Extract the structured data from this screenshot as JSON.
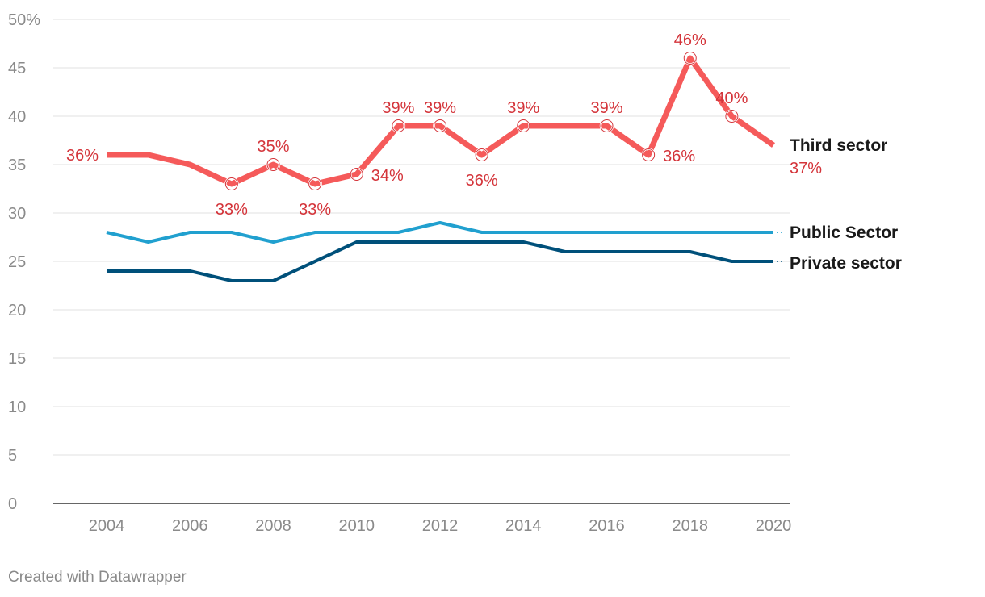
{
  "chart_data": {
    "type": "line",
    "x": [
      2004,
      2005,
      2006,
      2007,
      2008,
      2009,
      2010,
      2011,
      2012,
      2013,
      2014,
      2015,
      2016,
      2017,
      2018,
      2019,
      2020
    ],
    "x_tick_labels": [
      "2004",
      "2006",
      "2008",
      "2010",
      "2012",
      "2014",
      "2016",
      "2018",
      "2020"
    ],
    "y_tick_labels": [
      "50%",
      "45",
      "40",
      "35",
      "30",
      "25",
      "20",
      "15",
      "10",
      "5",
      "0"
    ],
    "ylim": [
      0,
      50
    ],
    "grid": true,
    "series": [
      {
        "name": "Third sector",
        "color": "#f55a5a",
        "values": [
          36,
          36,
          35,
          33,
          35,
          33,
          34,
          39,
          39,
          36,
          39,
          39,
          39,
          36,
          46,
          40,
          37
        ],
        "end_value_label": "37%",
        "point_labels": [
          {
            "index": 0,
            "text": "36%"
          },
          {
            "index": 3,
            "text": "33%"
          },
          {
            "index": 4,
            "text": "35%"
          },
          {
            "index": 5,
            "text": "33%"
          },
          {
            "index": 6,
            "text": "34%"
          },
          {
            "index": 7,
            "text": "39%"
          },
          {
            "index": 8,
            "text": "39%"
          },
          {
            "index": 9,
            "text": "36%"
          },
          {
            "index": 10,
            "text": "39%"
          },
          {
            "index": 12,
            "text": "39%"
          },
          {
            "index": 13,
            "text": "36%"
          },
          {
            "index": 14,
            "text": "46%"
          },
          {
            "index": 15,
            "text": "40%"
          }
        ]
      },
      {
        "name": "Public Sector",
        "color": "#21a0cf",
        "values": [
          28,
          27,
          28,
          28,
          27,
          28,
          28,
          28,
          29,
          28,
          28,
          28,
          28,
          28,
          28,
          28,
          28
        ]
      },
      {
        "name": "Private sector",
        "color": "#00507a",
        "values": [
          24,
          24,
          24,
          23,
          23,
          25,
          27,
          27,
          27,
          27,
          27,
          26,
          26,
          26,
          26,
          25,
          25
        ]
      }
    ]
  },
  "footer": "Created with Datawrapper"
}
